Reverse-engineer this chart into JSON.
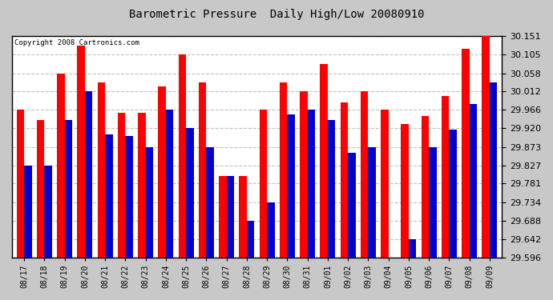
{
  "title": "Barometric Pressure  Daily High/Low 20080910",
  "copyright": "Copyright 2008 Cartronics.com",
  "dates": [
    "08/17",
    "08/18",
    "08/19",
    "08/20",
    "08/21",
    "08/22",
    "08/23",
    "08/24",
    "08/25",
    "08/26",
    "08/27",
    "08/28",
    "08/29",
    "08/30",
    "08/31",
    "09/01",
    "09/02",
    "09/03",
    "09/04",
    "09/05",
    "09/06",
    "09/07",
    "09/08",
    "09/09"
  ],
  "highs": [
    29.966,
    29.94,
    30.058,
    30.128,
    30.035,
    29.958,
    29.958,
    30.024,
    30.105,
    30.035,
    29.8,
    29.8,
    29.966,
    30.035,
    30.012,
    30.082,
    29.985,
    30.012,
    29.966,
    29.93,
    29.95,
    30.0,
    30.12,
    30.151
  ],
  "lows": [
    29.827,
    29.827,
    29.94,
    30.012,
    29.905,
    29.9,
    29.873,
    29.966,
    29.92,
    29.873,
    29.8,
    29.688,
    29.734,
    29.955,
    29.966,
    29.94,
    29.858,
    29.873,
    29.596,
    29.642,
    29.873,
    29.916,
    29.98,
    30.035
  ],
  "high_color": "#ff0000",
  "low_color": "#0000cc",
  "fig_bg_color": "#c8c8c8",
  "plot_bg_color": "#ffffff",
  "grid_color": "#c0c0c0",
  "yticks": [
    29.596,
    29.642,
    29.688,
    29.734,
    29.781,
    29.827,
    29.873,
    29.92,
    29.966,
    30.012,
    30.058,
    30.105,
    30.151
  ],
  "ymin": 29.596,
  "ymax": 30.151,
  "bar_width": 0.38
}
